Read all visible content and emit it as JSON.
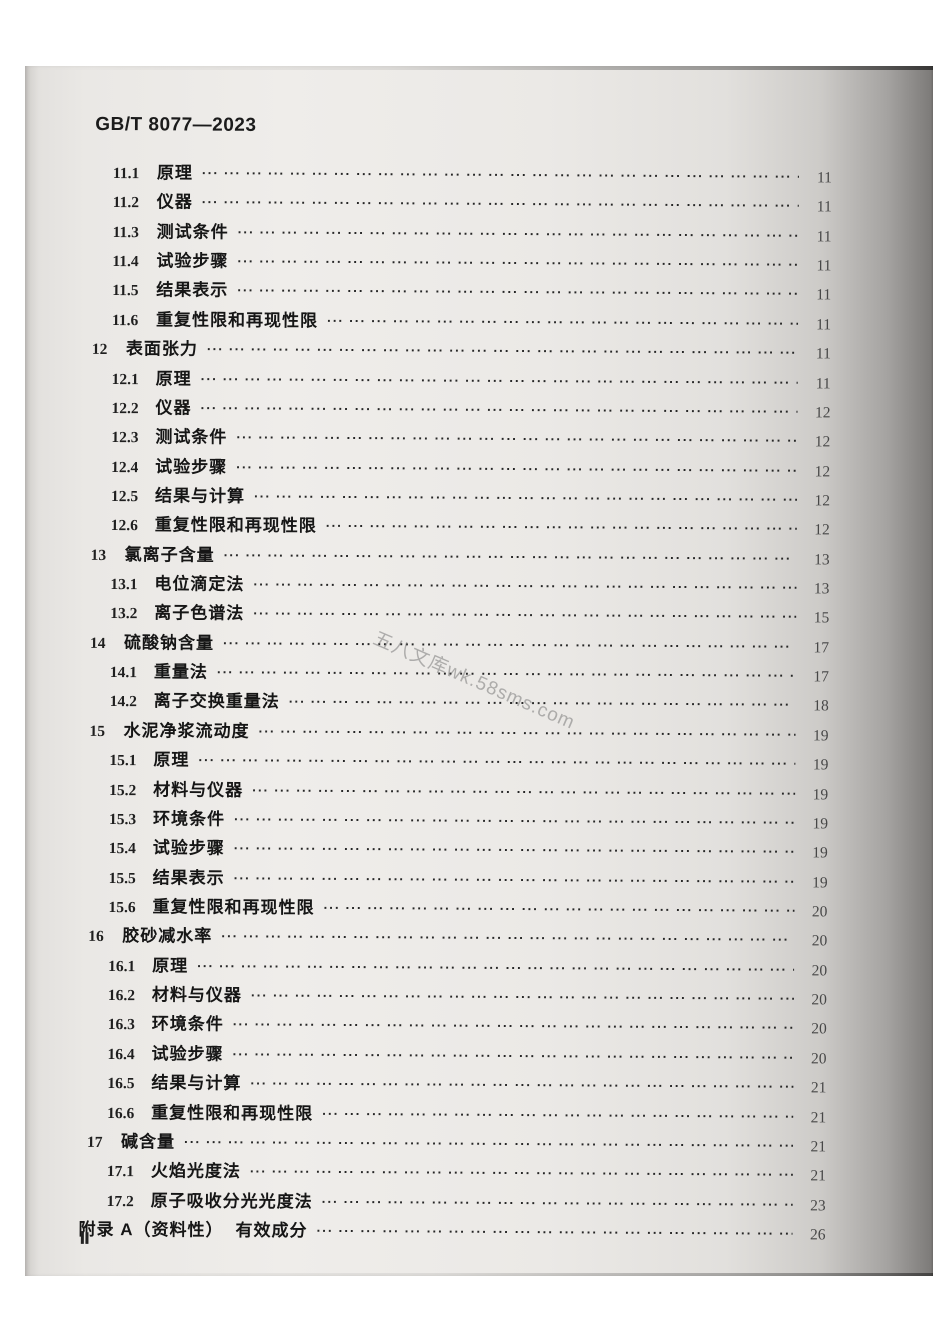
{
  "page": {
    "standard_code": "GB/T 8077—2023",
    "page_roman_numeral": "Ⅱ",
    "watermark": "五八文库wk.58sms.com"
  },
  "colors": {
    "paper": "#edebe8",
    "right_edge_shadow": "#6b6967",
    "text": "#161616",
    "page_number_text": "#474747"
  },
  "toc_entries": [
    {
      "num": "11.1",
      "title": "原理",
      "page": "11",
      "level": 2
    },
    {
      "num": "11.2",
      "title": "仪器",
      "page": "11",
      "level": 2
    },
    {
      "num": "11.3",
      "title": "测试条件",
      "page": "11",
      "level": 2
    },
    {
      "num": "11.4",
      "title": "试验步骤",
      "page": "11",
      "level": 2
    },
    {
      "num": "11.5",
      "title": "结果表示",
      "page": "11",
      "level": 2
    },
    {
      "num": "11.6",
      "title": "重复性限和再现性限",
      "page": "11",
      "level": 2
    },
    {
      "num": "12",
      "title": "表面张力",
      "page": "11",
      "level": 1
    },
    {
      "num": "12.1",
      "title": "原理",
      "page": "11",
      "level": 2
    },
    {
      "num": "12.2",
      "title": "仪器",
      "page": "12",
      "level": 2
    },
    {
      "num": "12.3",
      "title": "测试条件",
      "page": "12",
      "level": 2
    },
    {
      "num": "12.4",
      "title": "试验步骤",
      "page": "12",
      "level": 2
    },
    {
      "num": "12.5",
      "title": "结果与计算",
      "page": "12",
      "level": 2
    },
    {
      "num": "12.6",
      "title": "重复性限和再现性限",
      "page": "12",
      "level": 2
    },
    {
      "num": "13",
      "title": "氯离子含量",
      "page": "13",
      "level": 1
    },
    {
      "num": "13.1",
      "title": "电位滴定法",
      "page": "13",
      "level": 2
    },
    {
      "num": "13.2",
      "title": "离子色谱法",
      "page": "15",
      "level": 2
    },
    {
      "num": "14",
      "title": "硫酸钠含量",
      "page": "17",
      "level": 1
    },
    {
      "num": "14.1",
      "title": "重量法",
      "page": "17",
      "level": 2
    },
    {
      "num": "14.2",
      "title": "离子交换重量法",
      "page": "18",
      "level": 2
    },
    {
      "num": "15",
      "title": "水泥净浆流动度",
      "page": "19",
      "level": 1
    },
    {
      "num": "15.1",
      "title": "原理",
      "page": "19",
      "level": 2
    },
    {
      "num": "15.2",
      "title": "材料与仪器",
      "page": "19",
      "level": 2
    },
    {
      "num": "15.3",
      "title": "环境条件",
      "page": "19",
      "level": 2
    },
    {
      "num": "15.4",
      "title": "试验步骤",
      "page": "19",
      "level": 2
    },
    {
      "num": "15.5",
      "title": "结果表示",
      "page": "19",
      "level": 2
    },
    {
      "num": "15.6",
      "title": "重复性限和再现性限",
      "page": "20",
      "level": 2
    },
    {
      "num": "16",
      "title": "胶砂减水率",
      "page": "20",
      "level": 1
    },
    {
      "num": "16.1",
      "title": "原理",
      "page": "20",
      "level": 2
    },
    {
      "num": "16.2",
      "title": "材料与仪器",
      "page": "20",
      "level": 2
    },
    {
      "num": "16.3",
      "title": "环境条件",
      "page": "20",
      "level": 2
    },
    {
      "num": "16.4",
      "title": "试验步骤",
      "page": "20",
      "level": 2
    },
    {
      "num": "16.5",
      "title": "结果与计算",
      "page": "21",
      "level": 2
    },
    {
      "num": "16.6",
      "title": "重复性限和再现性限",
      "page": "21",
      "level": 2
    },
    {
      "num": "17",
      "title": "碱含量",
      "page": "21",
      "level": 1
    },
    {
      "num": "17.1",
      "title": "火焰光度法",
      "page": "21",
      "level": 2
    },
    {
      "num": "17.2",
      "title": "原子吸收分光光度法",
      "page": "23",
      "level": 2
    },
    {
      "num": "附录 A（资料性）",
      "title": "有效成分",
      "page": "26",
      "level": 0
    }
  ]
}
